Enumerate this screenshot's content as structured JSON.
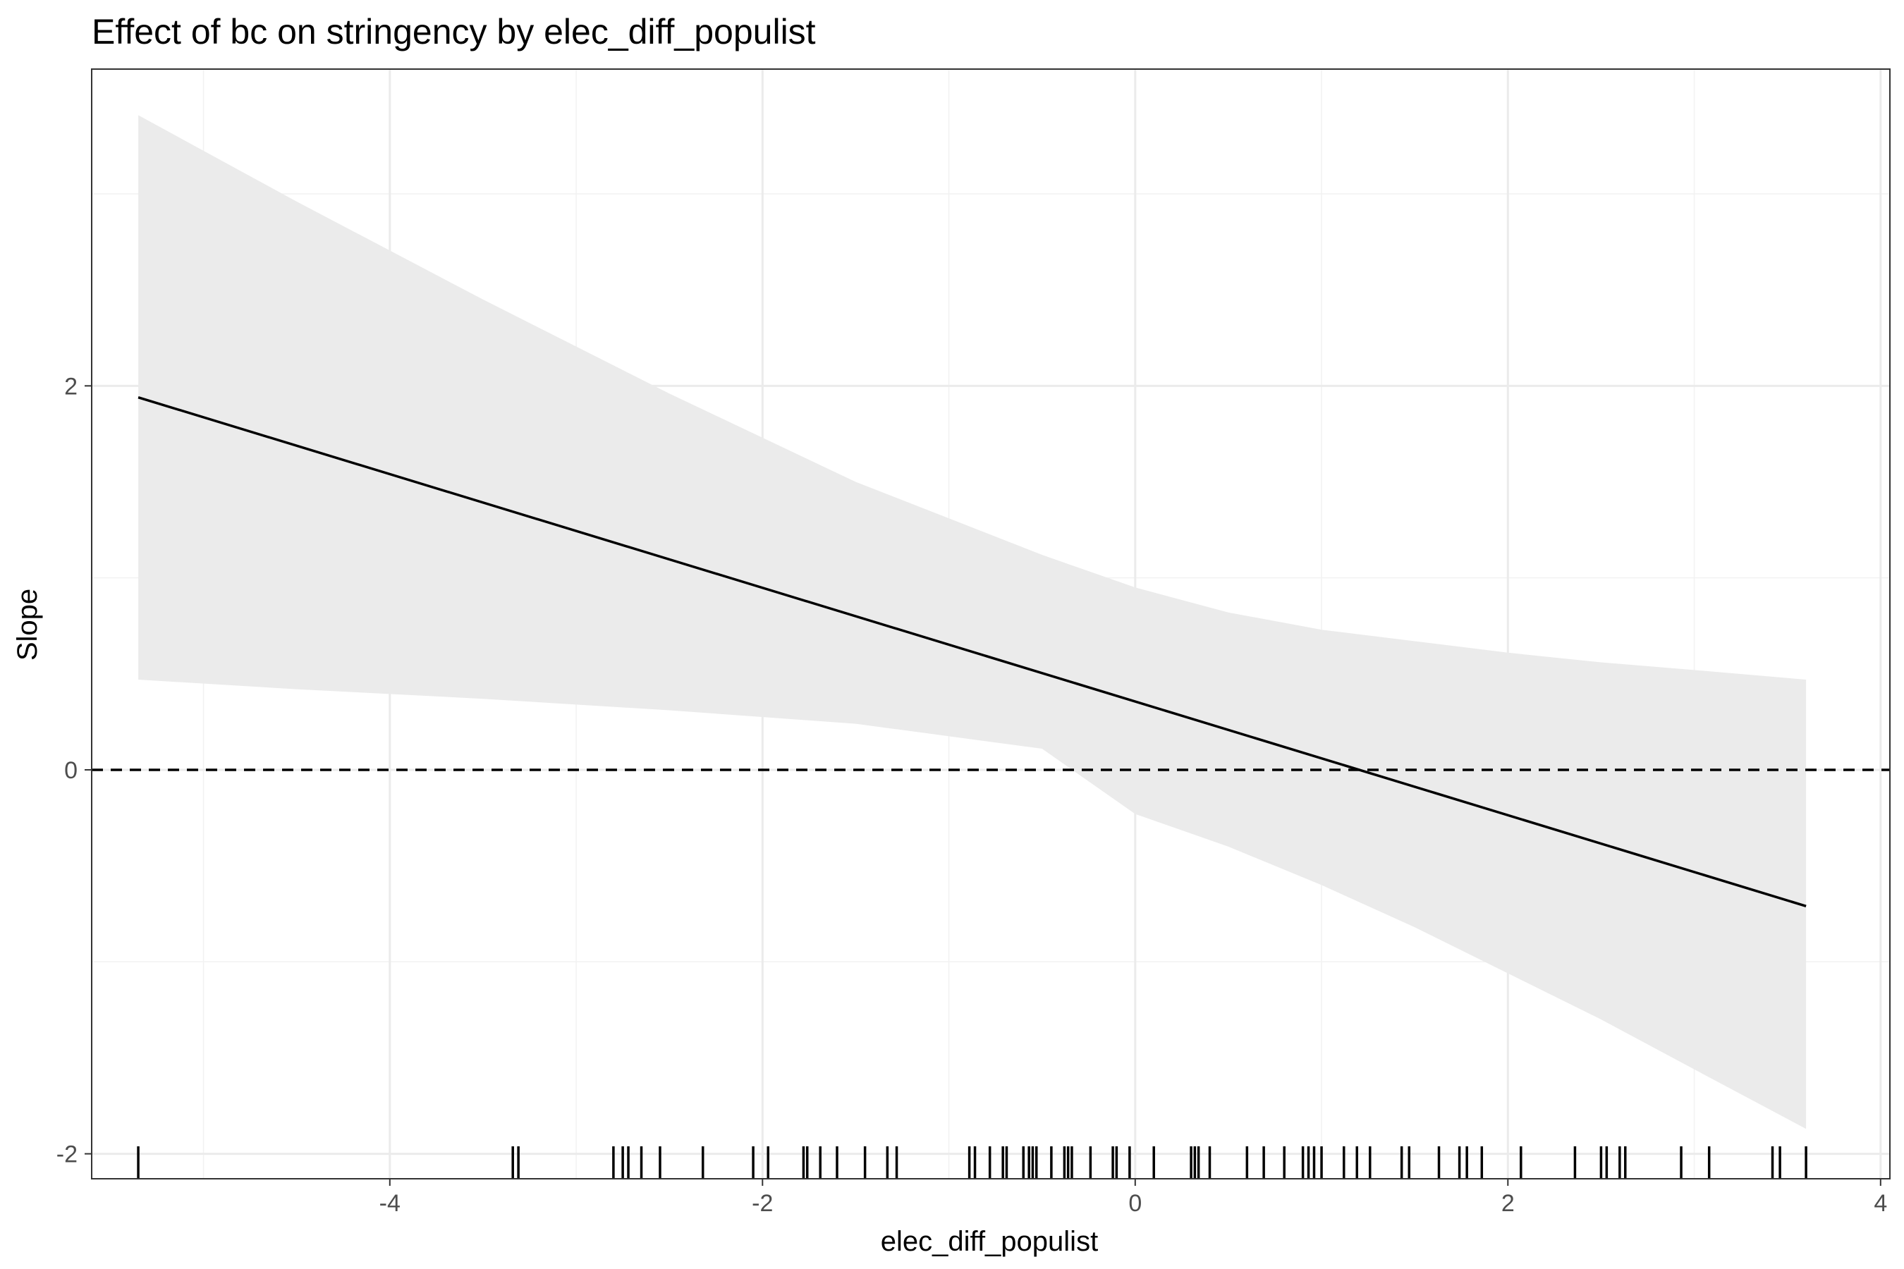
{
  "chart_data": {
    "type": "line",
    "title": "Effect of bc on stringency by elec_diff_populist",
    "xlabel": "elec_diff_populist",
    "ylabel": "Slope",
    "xlim": [
      -5.6,
      4.05
    ],
    "ylim": [
      -2.13,
      3.65
    ],
    "x_ticks": [
      -4,
      -2,
      0,
      2,
      4
    ],
    "x_tick_labels": [
      "-4",
      "-2",
      "0",
      "2",
      "4"
    ],
    "y_ticks": [
      -2,
      0,
      2
    ],
    "y_tick_labels": [
      "-2",
      "0",
      "2"
    ],
    "grid": true,
    "reference_line": {
      "y": 0,
      "style": "dashed"
    },
    "estimate": {
      "x": [
        -5.35,
        3.6
      ],
      "y": [
        1.94,
        -0.71
      ]
    },
    "confidence_band": {
      "x": [
        -5.35,
        -4.5,
        -3.5,
        -2.5,
        -1.5,
        -0.5,
        0,
        0.5,
        1,
        1.5,
        2,
        2.5,
        3,
        3.6
      ],
      "upper": [
        3.41,
        2.96,
        2.45,
        1.96,
        1.5,
        1.12,
        0.95,
        0.82,
        0.73,
        0.67,
        0.61,
        0.56,
        0.52,
        0.47
      ],
      "lower": [
        0.47,
        0.42,
        0.37,
        0.31,
        0.24,
        0.11,
        -0.23,
        -0.4,
        -0.6,
        -0.82,
        -1.06,
        -1.3,
        -1.56,
        -1.87
      ]
    },
    "rug": [
      -5.35,
      -3.34,
      -3.31,
      -2.8,
      -2.75,
      -2.72,
      -2.65,
      -2.55,
      -2.32,
      -2.05,
      -1.97,
      -1.78,
      -1.76,
      -1.69,
      -1.6,
      -1.45,
      -1.33,
      -1.28,
      -0.89,
      -0.86,
      -0.78,
      -0.71,
      -0.69,
      -0.6,
      -0.57,
      -0.55,
      -0.53,
      -0.45,
      -0.38,
      -0.36,
      -0.34,
      -0.24,
      -0.12,
      -0.1,
      -0.03,
      0.1,
      0.3,
      0.32,
      0.34,
      0.4,
      0.6,
      0.69,
      0.8,
      0.9,
      0.93,
      0.96,
      1.0,
      1.12,
      1.19,
      1.26,
      1.43,
      1.47,
      1.63,
      1.74,
      1.78,
      1.86,
      2.07,
      2.36,
      2.5,
      2.53,
      2.6,
      2.63,
      2.93,
      3.08,
      3.42,
      3.46,
      3.6
    ]
  }
}
